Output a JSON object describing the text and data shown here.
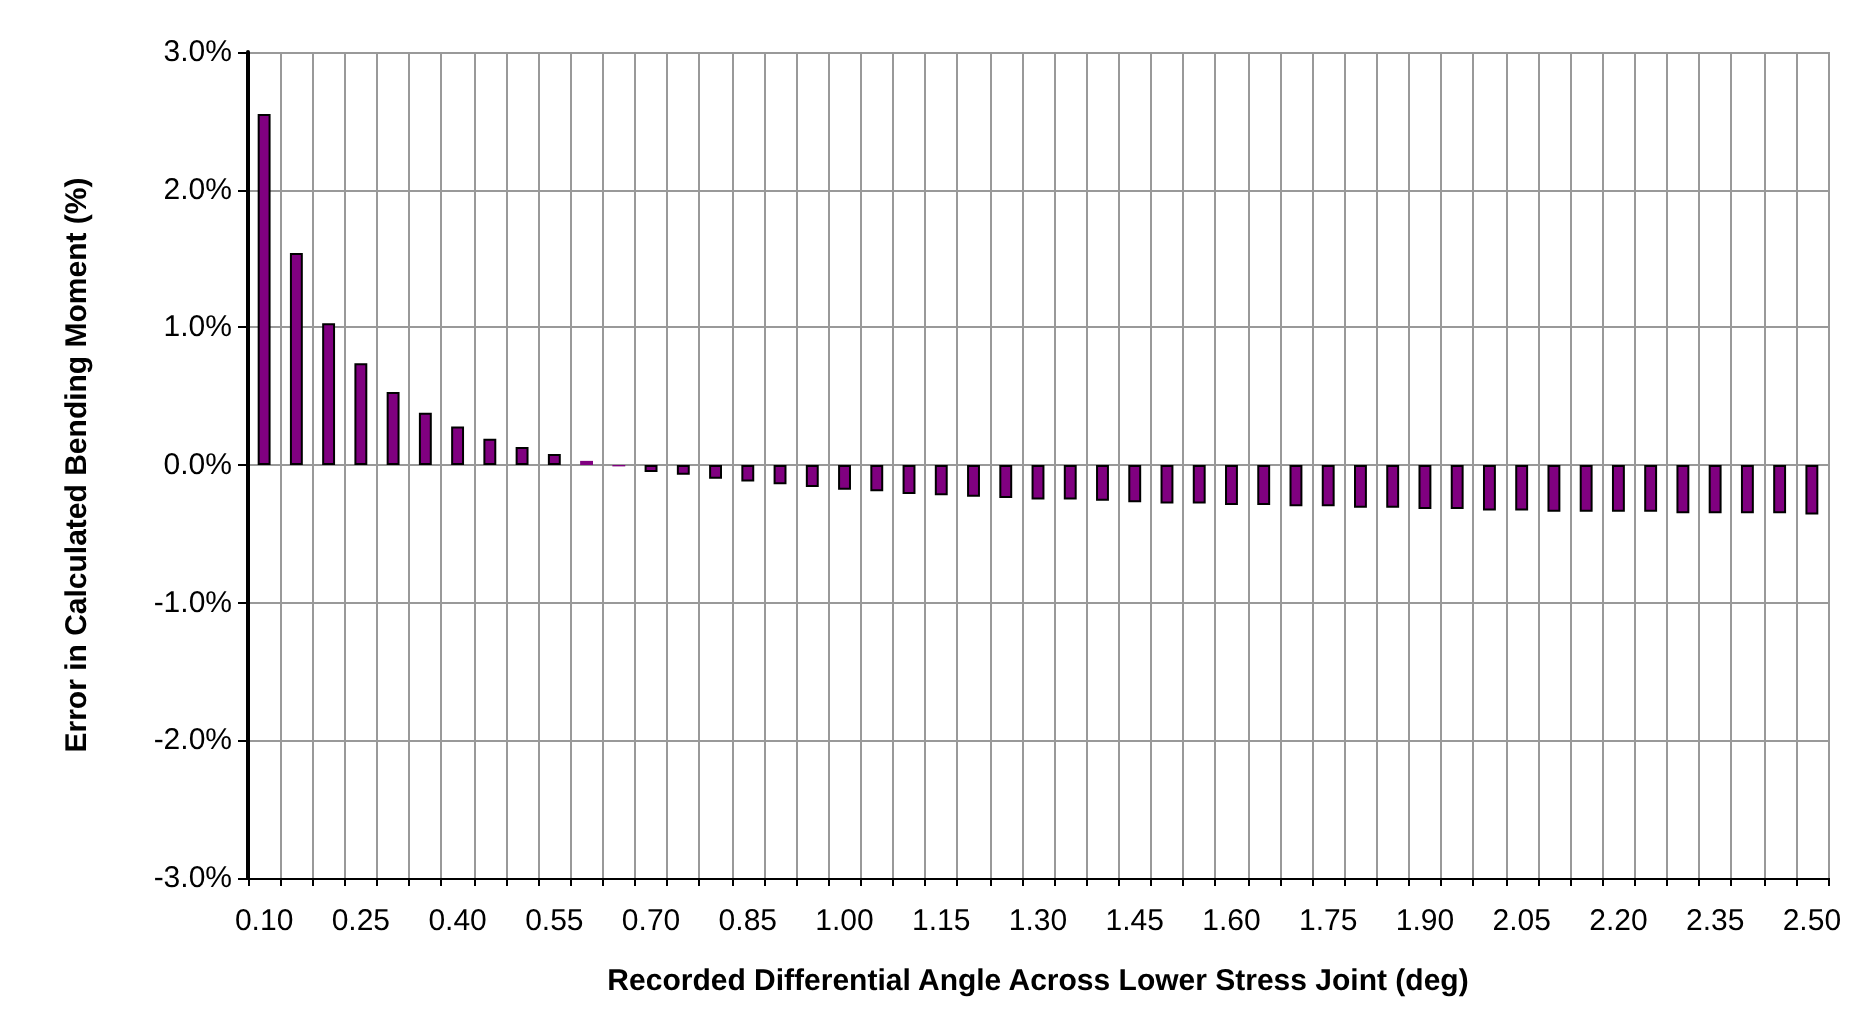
{
  "chart_data": {
    "type": "bar",
    "xlabel": "Recorded Differential Angle Across Lower Stress Joint (deg)",
    "ylabel": "Error in Calculated Bending Moment (%)",
    "categories": [
      "0.10",
      null,
      null,
      "0.25",
      null,
      null,
      "0.40",
      null,
      null,
      "0.55",
      null,
      null,
      "0.70",
      null,
      null,
      "0.85",
      null,
      null,
      "1.00",
      null,
      null,
      "1.15",
      null,
      null,
      "1.30",
      null,
      null,
      "1.45",
      null,
      null,
      "1.60",
      null,
      null,
      "1.75",
      null,
      null,
      "1.90",
      null,
      null,
      "2.05",
      null,
      null,
      "2.20",
      null,
      null,
      "2.35",
      null,
      null,
      "2.50"
    ],
    "values": [
      2.55,
      1.54,
      1.03,
      0.74,
      0.53,
      0.38,
      0.28,
      0.19,
      0.13,
      0.08,
      0.03,
      -0.01,
      -0.05,
      -0.07,
      -0.1,
      -0.12,
      -0.14,
      -0.16,
      -0.18,
      -0.19,
      -0.21,
      -0.22,
      -0.23,
      -0.24,
      -0.25,
      -0.25,
      -0.26,
      -0.27,
      -0.28,
      -0.28,
      -0.29,
      -0.29,
      -0.3,
      -0.3,
      -0.31,
      -0.31,
      -0.32,
      -0.32,
      -0.33,
      -0.33,
      -0.34,
      -0.34,
      -0.34,
      -0.34,
      -0.35,
      -0.35,
      -0.35,
      -0.35,
      -0.36
    ],
    "color": "#800080",
    "ylim": [
      -3,
      3
    ],
    "yticks": [
      {
        "value": -3,
        "label": "-3.0%"
      },
      {
        "value": -2,
        "label": "-2.0%"
      },
      {
        "value": -1,
        "label": "-1.0%"
      },
      {
        "value": 0,
        "label": "0.0%"
      },
      {
        "value": 1,
        "label": "1.0%"
      },
      {
        "value": 2,
        "label": "2.0%"
      },
      {
        "value": 3,
        "label": "3.0%"
      }
    ],
    "grid": true
  }
}
